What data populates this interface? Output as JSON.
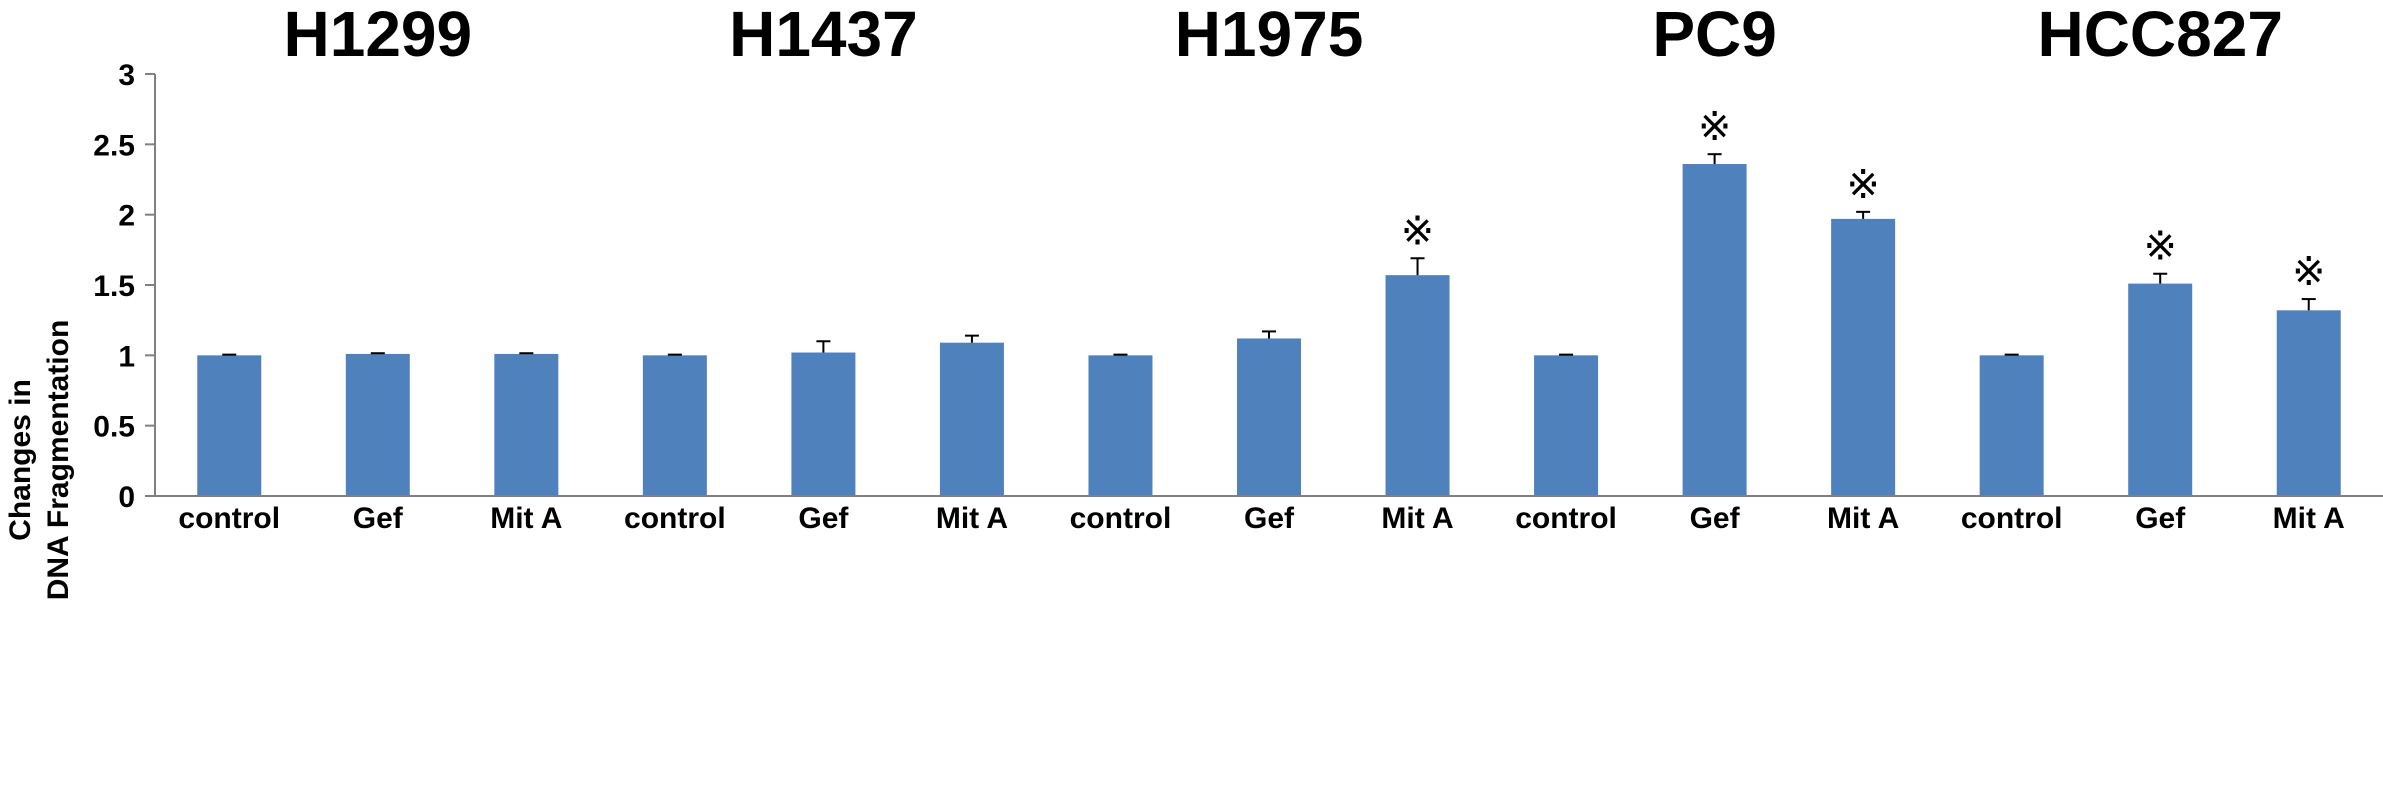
{
  "chart_data": {
    "type": "bar",
    "groups": [
      "H1299",
      "H1437",
      "H1975",
      "PC9",
      "HCC827"
    ],
    "categories": [
      "control",
      "Gef",
      "Mit A",
      "control",
      "Gef",
      "Mit A",
      "control",
      "Gef",
      "Mit A",
      "control",
      "Gef",
      "Mit A",
      "control",
      "Gef",
      "Mit A"
    ],
    "values": [
      1.0,
      1.01,
      1.01,
      1.0,
      1.02,
      1.09,
      1.0,
      1.12,
      1.57,
      1.0,
      2.36,
      1.97,
      1.0,
      1.51,
      1.32
    ],
    "errors": [
      0.005,
      0.005,
      0.005,
      0.005,
      0.08,
      0.05,
      0.005,
      0.05,
      0.12,
      0.005,
      0.07,
      0.05,
      0.005,
      0.07,
      0.08
    ],
    "significant": [
      false,
      false,
      false,
      false,
      false,
      false,
      false,
      false,
      true,
      false,
      true,
      true,
      false,
      true,
      true
    ],
    "significance_marker": "※",
    "ylabel_line1": "Changes in",
    "ylabel_line2": "DNA Fragmentation",
    "ylim": [
      0,
      3
    ],
    "yticks": [
      "0",
      "0.5",
      "1",
      "1.5",
      "2",
      "2.5",
      "3"
    ],
    "grid": false,
    "bar_color": "#4f81bd",
    "legend": "none"
  }
}
